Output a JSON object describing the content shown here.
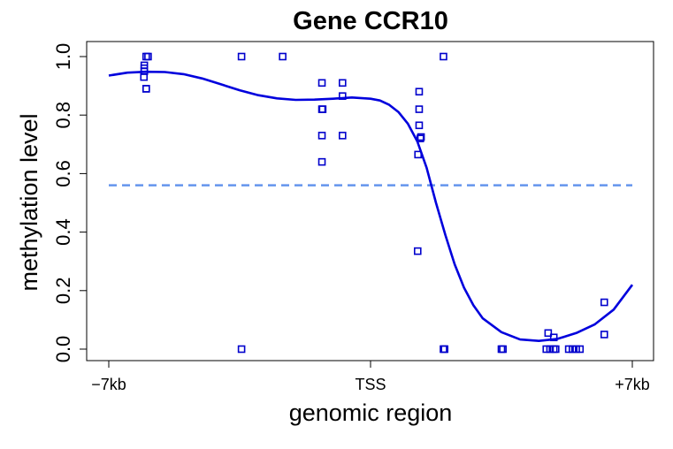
{
  "chart_data": {
    "type": "scatter",
    "title": "Gene CCR10",
    "xlabel": "genomic region",
    "ylabel": "methylation level",
    "xlim": [
      -7000,
      7000
    ],
    "ylim": [
      0,
      1
    ],
    "x_ticks": [
      {
        "value": -7000,
        "label": "−7kb"
      },
      {
        "value": 0,
        "label": "TSS"
      },
      {
        "value": 7000,
        "label": "+7kb"
      }
    ],
    "y_ticks": [
      {
        "value": 0.0,
        "label": "0.0"
      },
      {
        "value": 0.2,
        "label": "0.2"
      },
      {
        "value": 0.4,
        "label": "0.4"
      },
      {
        "value": 0.6,
        "label": "0.6"
      },
      {
        "value": 0.8,
        "label": "0.8"
      },
      {
        "value": 1.0,
        "label": "1.0"
      }
    ],
    "reference_line": {
      "y": 0.56,
      "style": "dashed"
    },
    "colors": {
      "points": "#0000cc",
      "curve": "#0000dd",
      "reference": "#6495ed"
    },
    "points": [
      {
        "x": -6000,
        "y": 1.0
      },
      {
        "x": -5950,
        "y": 1.0
      },
      {
        "x": -6050,
        "y": 0.97
      },
      {
        "x": -6050,
        "y": 0.96
      },
      {
        "x": -6050,
        "y": 0.95
      },
      {
        "x": -6060,
        "y": 0.93
      },
      {
        "x": -6000,
        "y": 0.89
      },
      {
        "x": -6000,
        "y": 0.89
      },
      {
        "x": -3450,
        "y": 1.0
      },
      {
        "x": -2350,
        "y": 1.0
      },
      {
        "x": -3450,
        "y": 0.0
      },
      {
        "x": -1300,
        "y": 0.91
      },
      {
        "x": -750,
        "y": 0.91
      },
      {
        "x": -750,
        "y": 0.865
      },
      {
        "x": -1300,
        "y": 0.82
      },
      {
        "x": -1280,
        "y": 0.82
      },
      {
        "x": -1300,
        "y": 0.73
      },
      {
        "x": -750,
        "y": 0.73
      },
      {
        "x": -1300,
        "y": 0.64
      },
      {
        "x": 1300,
        "y": 0.88
      },
      {
        "x": 1300,
        "y": 0.82
      },
      {
        "x": 1300,
        "y": 0.765
      },
      {
        "x": 1350,
        "y": 0.725
      },
      {
        "x": 1330,
        "y": 0.72
      },
      {
        "x": 1270,
        "y": 0.665
      },
      {
        "x": 1260,
        "y": 0.335
      },
      {
        "x": 1950,
        "y": 1.0
      },
      {
        "x": 1950,
        "y": 0.0
      },
      {
        "x": 1980,
        "y": 0.0
      },
      {
        "x": 3500,
        "y": 0.0
      },
      {
        "x": 3540,
        "y": 0.0
      },
      {
        "x": 4750,
        "y": 0.055
      },
      {
        "x": 4900,
        "y": 0.04
      },
      {
        "x": 4700,
        "y": 0.0
      },
      {
        "x": 4800,
        "y": 0.0
      },
      {
        "x": 4900,
        "y": 0.0
      },
      {
        "x": 4950,
        "y": 0.0
      },
      {
        "x": 5300,
        "y": 0.0
      },
      {
        "x": 5400,
        "y": 0.0
      },
      {
        "x": 5500,
        "y": 0.0
      },
      {
        "x": 5600,
        "y": 0.0
      },
      {
        "x": 6250,
        "y": 0.16
      },
      {
        "x": 6250,
        "y": 0.05
      }
    ],
    "smooth_curve": {
      "x": [
        -7000,
        -6500,
        -6000,
        -5500,
        -5000,
        -4500,
        -4000,
        -3500,
        -3000,
        -2500,
        -2000,
        -1500,
        -1000,
        -500,
        0,
        250,
        500,
        750,
        1000,
        1250,
        1500,
        1750,
        2000,
        2250,
        2500,
        2750,
        3000,
        3500,
        4000,
        4500,
        5000,
        5500,
        6000,
        6500,
        7000
      ],
      "y": [
        0.935,
        0.945,
        0.948,
        0.947,
        0.94,
        0.925,
        0.905,
        0.885,
        0.868,
        0.857,
        0.852,
        0.853,
        0.856,
        0.86,
        0.856,
        0.85,
        0.835,
        0.81,
        0.77,
        0.71,
        0.62,
        0.5,
        0.39,
        0.29,
        0.21,
        0.15,
        0.105,
        0.058,
        0.033,
        0.028,
        0.035,
        0.055,
        0.085,
        0.135,
        0.22
      ]
    }
  }
}
